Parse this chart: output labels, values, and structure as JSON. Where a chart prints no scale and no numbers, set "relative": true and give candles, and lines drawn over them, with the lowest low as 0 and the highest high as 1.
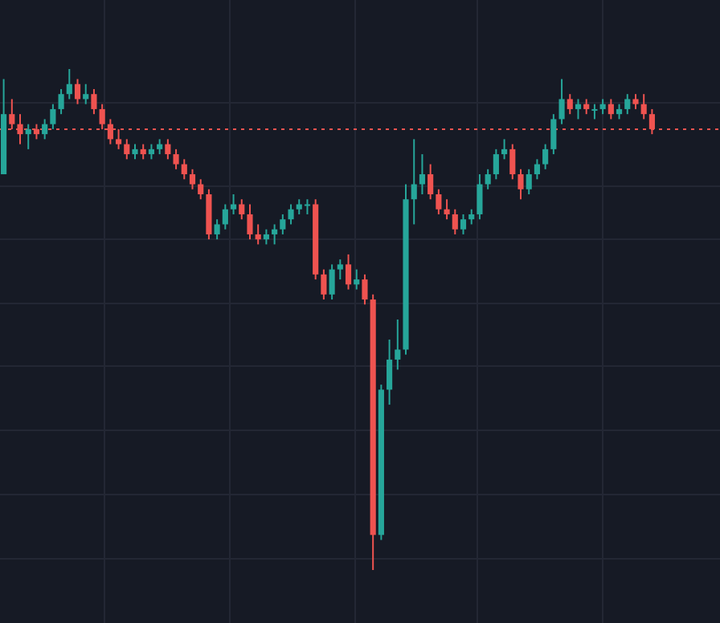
{
  "chart_data": {
    "type": "candlestick",
    "relative": true,
    "categories": [
      null,
      null,
      null,
      null,
      null,
      null,
      null,
      null,
      null,
      null,
      null,
      null,
      null,
      null,
      null,
      null,
      null,
      null,
      null,
      null,
      null,
      null,
      null,
      null,
      null,
      null,
      null,
      null,
      null,
      null,
      null,
      null,
      null,
      null,
      null,
      null,
      null,
      null,
      null,
      null,
      null,
      null,
      null,
      null,
      null,
      null,
      null,
      null,
      null,
      null,
      null,
      null,
      null,
      null,
      null,
      null,
      null,
      null,
      null,
      null,
      null,
      null,
      null,
      null,
      null,
      null,
      null,
      null,
      null,
      null,
      null,
      null,
      null,
      null,
      null,
      null,
      null,
      null,
      null,
      null
    ],
    "ohlc": [
      [
        0.79,
        0.98,
        0.79,
        0.91
      ],
      [
        0.91,
        0.94,
        0.88,
        0.89
      ],
      [
        0.89,
        0.91,
        0.85,
        0.87
      ],
      [
        0.87,
        0.89,
        0.84,
        0.88
      ],
      [
        0.88,
        0.89,
        0.86,
        0.87
      ],
      [
        0.87,
        0.9,
        0.86,
        0.89
      ],
      [
        0.89,
        0.93,
        0.88,
        0.92
      ],
      [
        0.92,
        0.96,
        0.91,
        0.95
      ],
      [
        0.95,
        1,
        0.94,
        0.97
      ],
      [
        0.97,
        0.98,
        0.93,
        0.94
      ],
      [
        0.94,
        0.97,
        0.93,
        0.95
      ],
      [
        0.95,
        0.96,
        0.91,
        0.92
      ],
      [
        0.92,
        0.93,
        0.88,
        0.89
      ],
      [
        0.89,
        0.9,
        0.85,
        0.86
      ],
      [
        0.86,
        0.88,
        0.84,
        0.85
      ],
      [
        0.85,
        0.86,
        0.82,
        0.83
      ],
      [
        0.83,
        0.85,
        0.82,
        0.84
      ],
      [
        0.84,
        0.85,
        0.82,
        0.83
      ],
      [
        0.83,
        0.85,
        0.82,
        0.84
      ],
      [
        0.84,
        0.86,
        0.83,
        0.85
      ],
      [
        0.85,
        0.86,
        0.82,
        0.83
      ],
      [
        0.83,
        0.84,
        0.8,
        0.81
      ],
      [
        0.81,
        0.82,
        0.78,
        0.79
      ],
      [
        0.79,
        0.8,
        0.76,
        0.77
      ],
      [
        0.77,
        0.78,
        0.74,
        0.75
      ],
      [
        0.75,
        0.76,
        0.66,
        0.67
      ],
      [
        0.67,
        0.7,
        0.66,
        0.69
      ],
      [
        0.69,
        0.73,
        0.68,
        0.72
      ],
      [
        0.72,
        0.75,
        0.71,
        0.73
      ],
      [
        0.73,
        0.74,
        0.7,
        0.71
      ],
      [
        0.71,
        0.73,
        0.66,
        0.67
      ],
      [
        0.67,
        0.69,
        0.65,
        0.66
      ],
      [
        0.66,
        0.68,
        0.65,
        0.67
      ],
      [
        0.67,
        0.69,
        0.65,
        0.68
      ],
      [
        0.68,
        0.71,
        0.67,
        0.7
      ],
      [
        0.7,
        0.73,
        0.69,
        0.72
      ],
      [
        0.72,
        0.74,
        0.71,
        0.73
      ],
      [
        0.73,
        0.74,
        0.71,
        0.73
      ],
      [
        0.73,
        0.74,
        0.58,
        0.59
      ],
      [
        0.59,
        0.6,
        0.54,
        0.55
      ],
      [
        0.55,
        0.61,
        0.54,
        0.6
      ],
      [
        0.6,
        0.62,
        0.58,
        0.61
      ],
      [
        0.61,
        0.63,
        0.56,
        0.57
      ],
      [
        0.57,
        0.6,
        0.56,
        0.58
      ],
      [
        0.58,
        0.59,
        0.53,
        0.54
      ],
      [
        0.54,
        0.55,
        0,
        0.07
      ],
      [
        0.07,
        0.37,
        0.06,
        0.36
      ],
      [
        0.36,
        0.46,
        0.33,
        0.42
      ],
      [
        0.42,
        0.5,
        0.4,
        0.44
      ],
      [
        0.44,
        0.77,
        0.43,
        0.74
      ],
      [
        0.74,
        0.86,
        0.69,
        0.77
      ],
      [
        0.77,
        0.83,
        0.75,
        0.79
      ],
      [
        0.79,
        0.81,
        0.74,
        0.75
      ],
      [
        0.75,
        0.76,
        0.71,
        0.72
      ],
      [
        0.72,
        0.74,
        0.7,
        0.71
      ],
      [
        0.71,
        0.72,
        0.67,
        0.68
      ],
      [
        0.68,
        0.71,
        0.67,
        0.7
      ],
      [
        0.7,
        0.72,
        0.69,
        0.71
      ],
      [
        0.71,
        0.79,
        0.7,
        0.77
      ],
      [
        0.77,
        0.8,
        0.76,
        0.79
      ],
      [
        0.79,
        0.84,
        0.78,
        0.83
      ],
      [
        0.83,
        0.86,
        0.82,
        0.84
      ],
      [
        0.84,
        0.85,
        0.78,
        0.79
      ],
      [
        0.79,
        0.8,
        0.74,
        0.76
      ],
      [
        0.76,
        0.8,
        0.75,
        0.79
      ],
      [
        0.79,
        0.82,
        0.78,
        0.81
      ],
      [
        0.81,
        0.85,
        0.8,
        0.84
      ],
      [
        0.84,
        0.91,
        0.83,
        0.9
      ],
      [
        0.9,
        0.98,
        0.89,
        0.94
      ],
      [
        0.94,
        0.95,
        0.91,
        0.92
      ],
      [
        0.92,
        0.94,
        0.9,
        0.93
      ],
      [
        0.93,
        0.94,
        0.91,
        0.92
      ],
      [
        0.92,
        0.93,
        0.9,
        0.92
      ],
      [
        0.92,
        0.94,
        0.91,
        0.93
      ],
      [
        0.93,
        0.94,
        0.9,
        0.91
      ],
      [
        0.91,
        0.93,
        0.9,
        0.92
      ],
      [
        0.92,
        0.95,
        0.91,
        0.94
      ],
      [
        0.94,
        0.95,
        0.92,
        0.93
      ],
      [
        0.93,
        0.95,
        0.9,
        0.91
      ],
      [
        0.91,
        0.92,
        0.87,
        0.88
      ]
    ],
    "colors": [
      "#26a69a",
      "#ef5350",
      "#ef5350",
      "#26a69a",
      "#ef5350",
      "#26a69a",
      "#26a69a",
      "#26a69a",
      "#26a69a",
      "#ef5350",
      "#26a69a",
      "#ef5350",
      "#ef5350",
      "#ef5350",
      "#ef5350",
      "#ef5350",
      "#26a69a",
      "#ef5350",
      "#26a69a",
      "#26a69a",
      "#ef5350",
      "#ef5350",
      "#ef5350",
      "#ef5350",
      "#ef5350",
      "#ef5350",
      "#26a69a",
      "#26a69a",
      "#26a69a",
      "#ef5350",
      "#ef5350",
      "#ef5350",
      "#26a69a",
      "#26a69a",
      "#26a69a",
      "#26a69a",
      "#26a69a",
      "#26a69a",
      "#ef5350",
      "#ef5350",
      "#26a69a",
      "#26a69a",
      "#ef5350",
      "#26a69a",
      "#ef5350",
      "#ef5350",
      "#26a69a",
      "#26a69a",
      "#26a69a",
      "#26a69a",
      "#26a69a",
      "#26a69a",
      "#ef5350",
      "#ef5350",
      "#ef5350",
      "#ef5350",
      "#26a69a",
      "#26a69a",
      "#26a69a",
      "#26a69a",
      "#26a69a",
      "#26a69a",
      "#ef5350",
      "#ef5350",
      "#26a69a",
      "#26a69a",
      "#26a69a",
      "#26a69a",
      "#26a69a",
      "#ef5350",
      "#26a69a",
      "#ef5350",
      "#26a69a",
      "#26a69a",
      "#ef5350",
      "#26a69a",
      "#26a69a",
      "#ef5350",
      "#ef5350",
      "#ef5350"
    ],
    "ref_lines": [
      {
        "axis": "y",
        "value": 0.88,
        "color": "#ef5350",
        "line_style": "dotted"
      }
    ]
  }
}
